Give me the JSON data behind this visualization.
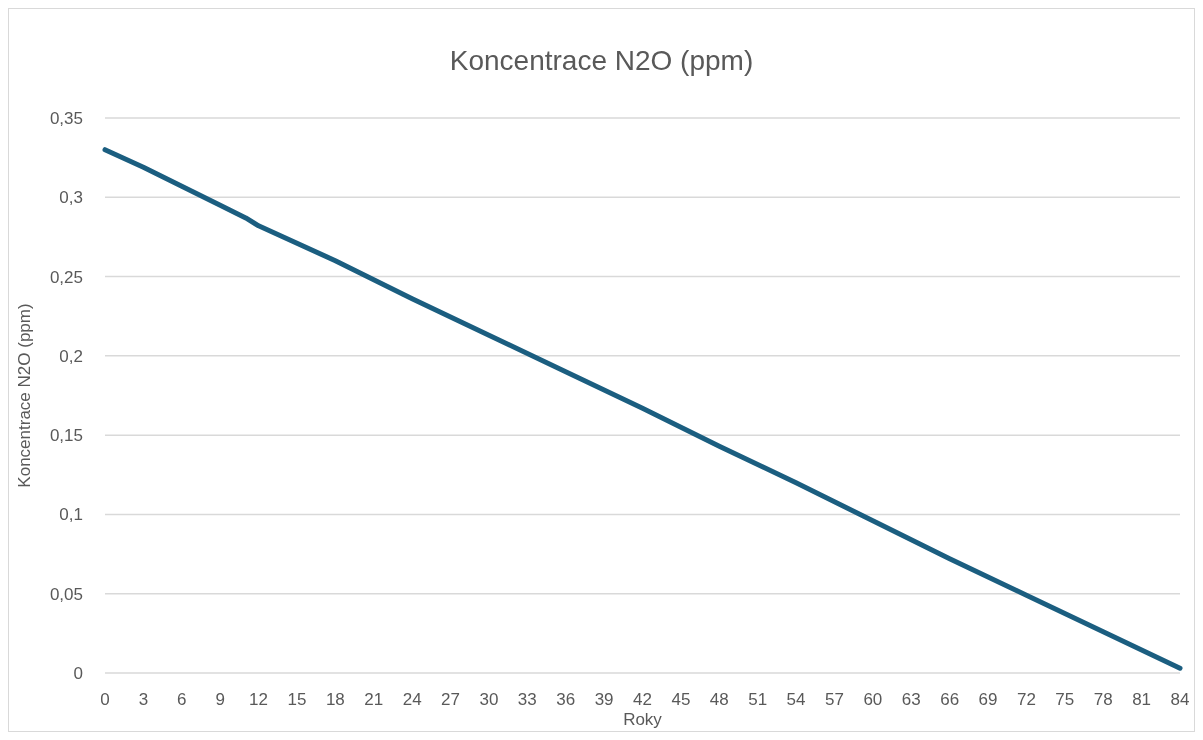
{
  "chart_data": {
    "type": "line",
    "title": "Koncentrace N2O (ppm)",
    "xlabel": "Roky",
    "ylabel": "Koncentrace N2O (ppm)",
    "series": [
      {
        "color": "#1b5e80",
        "x": [
          0,
          3,
          6,
          9,
          11,
          12,
          18,
          24,
          30,
          36,
          42,
          48,
          54,
          60,
          66,
          72,
          78,
          84
        ],
        "values": [
          0.33,
          0.319,
          0.307,
          0.295,
          0.287,
          0.282,
          0.26,
          0.236,
          0.213,
          0.19,
          0.167,
          0.143,
          0.12,
          0.096,
          0.072,
          0.049,
          0.026,
          0.003
        ]
      }
    ],
    "xlim": [
      0,
      84
    ],
    "xticks": [
      0,
      3,
      6,
      9,
      12,
      15,
      18,
      21,
      24,
      27,
      30,
      33,
      36,
      39,
      42,
      45,
      48,
      51,
      54,
      57,
      60,
      63,
      66,
      69,
      72,
      75,
      78,
      81,
      84
    ],
    "ylim": [
      0,
      0.35
    ],
    "yticks": [
      {
        "value": 0,
        "label": "0"
      },
      {
        "value": 0.05,
        "label": "0,05"
      },
      {
        "value": 0.1,
        "label": "0,1"
      },
      {
        "value": 0.15,
        "label": "0,15"
      },
      {
        "value": 0.2,
        "label": "0,2"
      },
      {
        "value": 0.25,
        "label": "0,25"
      },
      {
        "value": 0.3,
        "label": "0,3"
      },
      {
        "value": 0.35,
        "label": "0,35"
      }
    ],
    "grid": "y",
    "marker": "none",
    "line_style": "solid"
  }
}
